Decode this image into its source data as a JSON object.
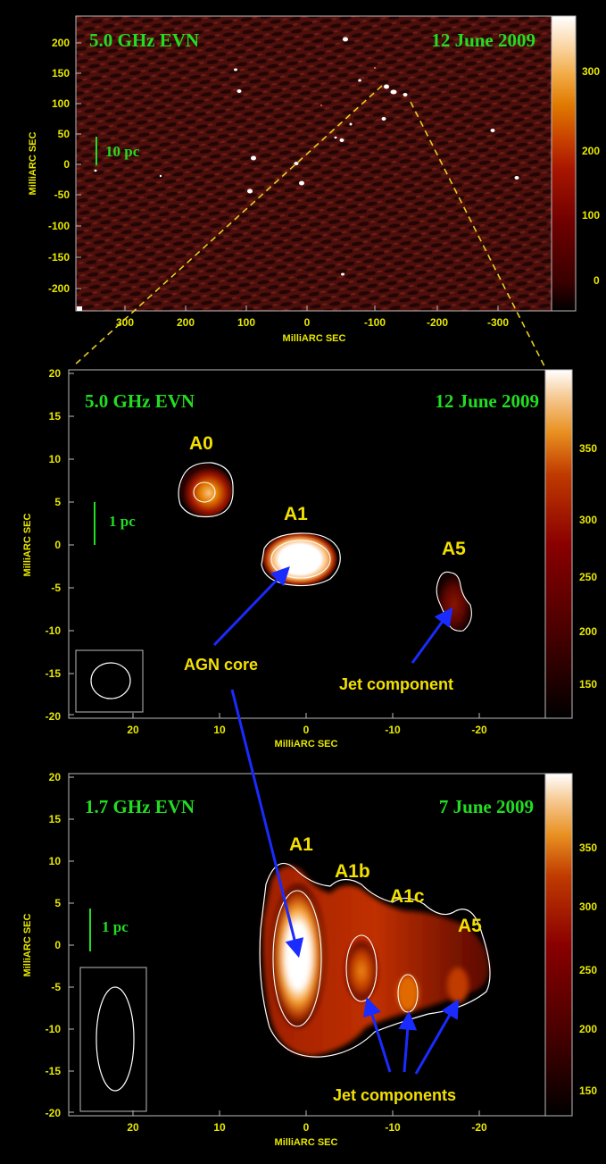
{
  "colors": {
    "axis_text": "#e8e800",
    "header_text": "#22dd22",
    "label_text": "#f3e000",
    "arrow": "#1a2bff",
    "zoom_line": "#e8d020",
    "contour": "#ffffff"
  },
  "colorbar_palette": [
    "#000000",
    "#3a0000",
    "#700000",
    "#a81500",
    "#c84000",
    "#e07a00",
    "#f2aa45",
    "#fad7a6",
    "#ffffff"
  ],
  "panels": [
    {
      "id": "panel-top",
      "title": "5.0 GHz EVN",
      "date": "12 June 2009",
      "xlabel": "MilliARC SEC",
      "ylabel": "MilliARC SEC",
      "x_ticks": [
        "300",
        "200",
        "100",
        "0",
        "-100",
        "-200",
        "-300"
      ],
      "y_ticks": [
        "200",
        "150",
        "100",
        "50",
        "0",
        "-50",
        "-100",
        "-150",
        "-200"
      ],
      "colorbar_ticks": [
        "300",
        "200",
        "100",
        "0"
      ],
      "scale_bar": "10 pc",
      "labels": []
    },
    {
      "id": "panel-middle",
      "title": "5.0 GHz EVN",
      "date": "12 June 2009",
      "xlabel": "MilliARC SEC",
      "ylabel": "MilliARC SEC",
      "x_ticks": [
        "20",
        "10",
        "0",
        "-10",
        "-20"
      ],
      "y_ticks": [
        "20",
        "15",
        "10",
        "5",
        "0",
        "-5",
        "-10",
        "-15",
        "-20"
      ],
      "colorbar_ticks": [
        "350",
        "300",
        "250",
        "200",
        "150"
      ],
      "scale_bar": "1 pc",
      "labels": [
        "A0",
        "A1",
        "A5",
        "AGN core",
        "Jet component"
      ]
    },
    {
      "id": "panel-bottom",
      "title": "1.7 GHz EVN",
      "date": "7 June 2009",
      "xlabel": "MilliARC SEC",
      "ylabel": "MilliARC SEC",
      "x_ticks": [
        "20",
        "10",
        "0",
        "-10",
        "-20"
      ],
      "y_ticks": [
        "20",
        "15",
        "10",
        "5",
        "0",
        "-5",
        "-10",
        "-15",
        "-20"
      ],
      "colorbar_ticks": [
        "350",
        "300",
        "250",
        "200",
        "150"
      ],
      "scale_bar": "1 pc",
      "labels": [
        "A1",
        "A1b",
        "A1c",
        "A5",
        "Jet components"
      ]
    }
  ]
}
